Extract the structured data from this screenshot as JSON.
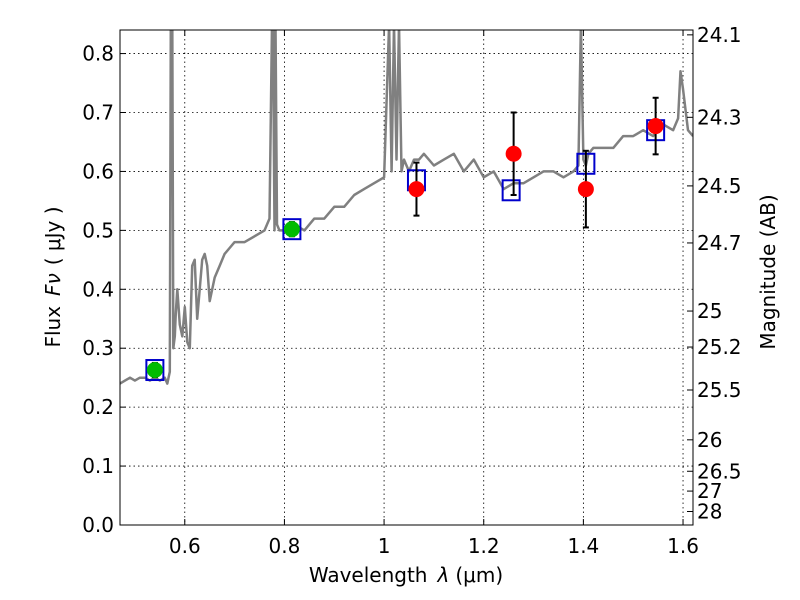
{
  "chart_data": {
    "type": "scatter",
    "xlabel_prefix": "Wavelength",
    "xlabel_symbol": "λ",
    "xlabel_unit": "(μm)",
    "ylabel_prefix": "Flux",
    "ylabel_symbol": "Fν",
    "ylabel_unit": "( μJy )",
    "y2label": "Magnitude (AB)",
    "xlim": [
      0.47,
      1.62
    ],
    "ylim": [
      0.0,
      0.84
    ],
    "xticks": [
      0.6,
      0.8,
      1.0,
      1.2,
      1.4,
      1.6
    ],
    "xtick_labels": [
      "0.6",
      "0.8",
      "1",
      "1.2",
      "1.4",
      "1.6"
    ],
    "yticks": [
      0.0,
      0.1,
      0.2,
      0.3,
      0.4,
      0.5,
      0.6,
      0.7,
      0.8
    ],
    "ytick_labels": [
      "0.0",
      "0.1",
      "0.2",
      "0.3",
      "0.4",
      "0.5",
      "0.6",
      "0.7",
      "0.8"
    ],
    "mag_ticks": [
      "24.1",
      "24.3",
      "24.5",
      "24.7",
      "25",
      "25.2",
      "25.5",
      "26",
      "26.5",
      "27",
      "28"
    ],
    "grid": true,
    "colors": {
      "spectrum": "#808080",
      "model_box": "#0000cc",
      "observed_red": "#ff0000",
      "observed_green": "#00bb00",
      "errorbar": "#000000"
    },
    "series": [
      {
        "name": "model spectrum",
        "kind": "line",
        "x": [
          0.47,
          0.48,
          0.49,
          0.5,
          0.51,
          0.52,
          0.53,
          0.54,
          0.55,
          0.56,
          0.565,
          0.57,
          0.572,
          0.575,
          0.577,
          0.58,
          0.582,
          0.585,
          0.59,
          0.595,
          0.6,
          0.605,
          0.61,
          0.615,
          0.62,
          0.625,
          0.63,
          0.635,
          0.64,
          0.645,
          0.65,
          0.66,
          0.67,
          0.68,
          0.69,
          0.7,
          0.72,
          0.74,
          0.76,
          0.77,
          0.775,
          0.777,
          0.78,
          0.782,
          0.785,
          0.79,
          0.8,
          0.82,
          0.84,
          0.86,
          0.88,
          0.9,
          0.92,
          0.94,
          0.96,
          0.98,
          1.0,
          1.01,
          1.015,
          1.02,
          1.025,
          1.03,
          1.035,
          1.04,
          1.05,
          1.06,
          1.07,
          1.08,
          1.1,
          1.12,
          1.14,
          1.16,
          1.18,
          1.2,
          1.22,
          1.24,
          1.26,
          1.28,
          1.3,
          1.32,
          1.34,
          1.36,
          1.38,
          1.39,
          1.395,
          1.4,
          1.405,
          1.41,
          1.42,
          1.44,
          1.46,
          1.48,
          1.5,
          1.52,
          1.54,
          1.56,
          1.58,
          1.59,
          1.595,
          1.6,
          1.61,
          1.62
        ],
        "y": [
          0.24,
          0.245,
          0.25,
          0.245,
          0.25,
          0.25,
          0.245,
          0.25,
          0.245,
          0.25,
          0.24,
          0.26,
          0.85,
          0.85,
          0.3,
          0.32,
          0.36,
          0.4,
          0.34,
          0.32,
          0.37,
          0.31,
          0.3,
          0.44,
          0.45,
          0.35,
          0.4,
          0.45,
          0.46,
          0.44,
          0.38,
          0.42,
          0.44,
          0.46,
          0.47,
          0.48,
          0.48,
          0.49,
          0.5,
          0.52,
          0.85,
          0.85,
          0.5,
          0.85,
          0.51,
          0.5,
          0.5,
          0.51,
          0.5,
          0.52,
          0.52,
          0.54,
          0.54,
          0.56,
          0.57,
          0.58,
          0.59,
          0.85,
          0.6,
          0.85,
          0.62,
          0.85,
          0.6,
          0.62,
          0.6,
          0.62,
          0.62,
          0.63,
          0.61,
          0.62,
          0.63,
          0.6,
          0.62,
          0.59,
          0.6,
          0.57,
          0.58,
          0.58,
          0.59,
          0.6,
          0.6,
          0.59,
          0.6,
          0.61,
          0.85,
          0.62,
          0.61,
          0.63,
          0.64,
          0.64,
          0.64,
          0.66,
          0.66,
          0.67,
          0.66,
          0.68,
          0.67,
          0.69,
          0.77,
          0.74,
          0.67,
          0.66
        ]
      },
      {
        "name": "model photometry",
        "kind": "box",
        "x": [
          0.54,
          0.815,
          1.065,
          1.255,
          1.405,
          1.545
        ],
        "y": [
          0.263,
          0.502,
          0.585,
          0.568,
          0.613,
          0.67
        ]
      },
      {
        "name": "observed (red)",
        "kind": "point",
        "x": [
          1.065,
          1.26,
          1.405,
          1.545
        ],
        "y": [
          0.57,
          0.63,
          0.57,
          0.677
        ],
        "yerr": [
          0.045,
          0.07,
          0.065,
          0.048
        ]
      },
      {
        "name": "observed (green)",
        "kind": "point",
        "x": [
          0.54,
          0.815
        ],
        "y": [
          0.263,
          0.502
        ],
        "yerr": [
          0.012,
          0.012
        ]
      }
    ]
  }
}
